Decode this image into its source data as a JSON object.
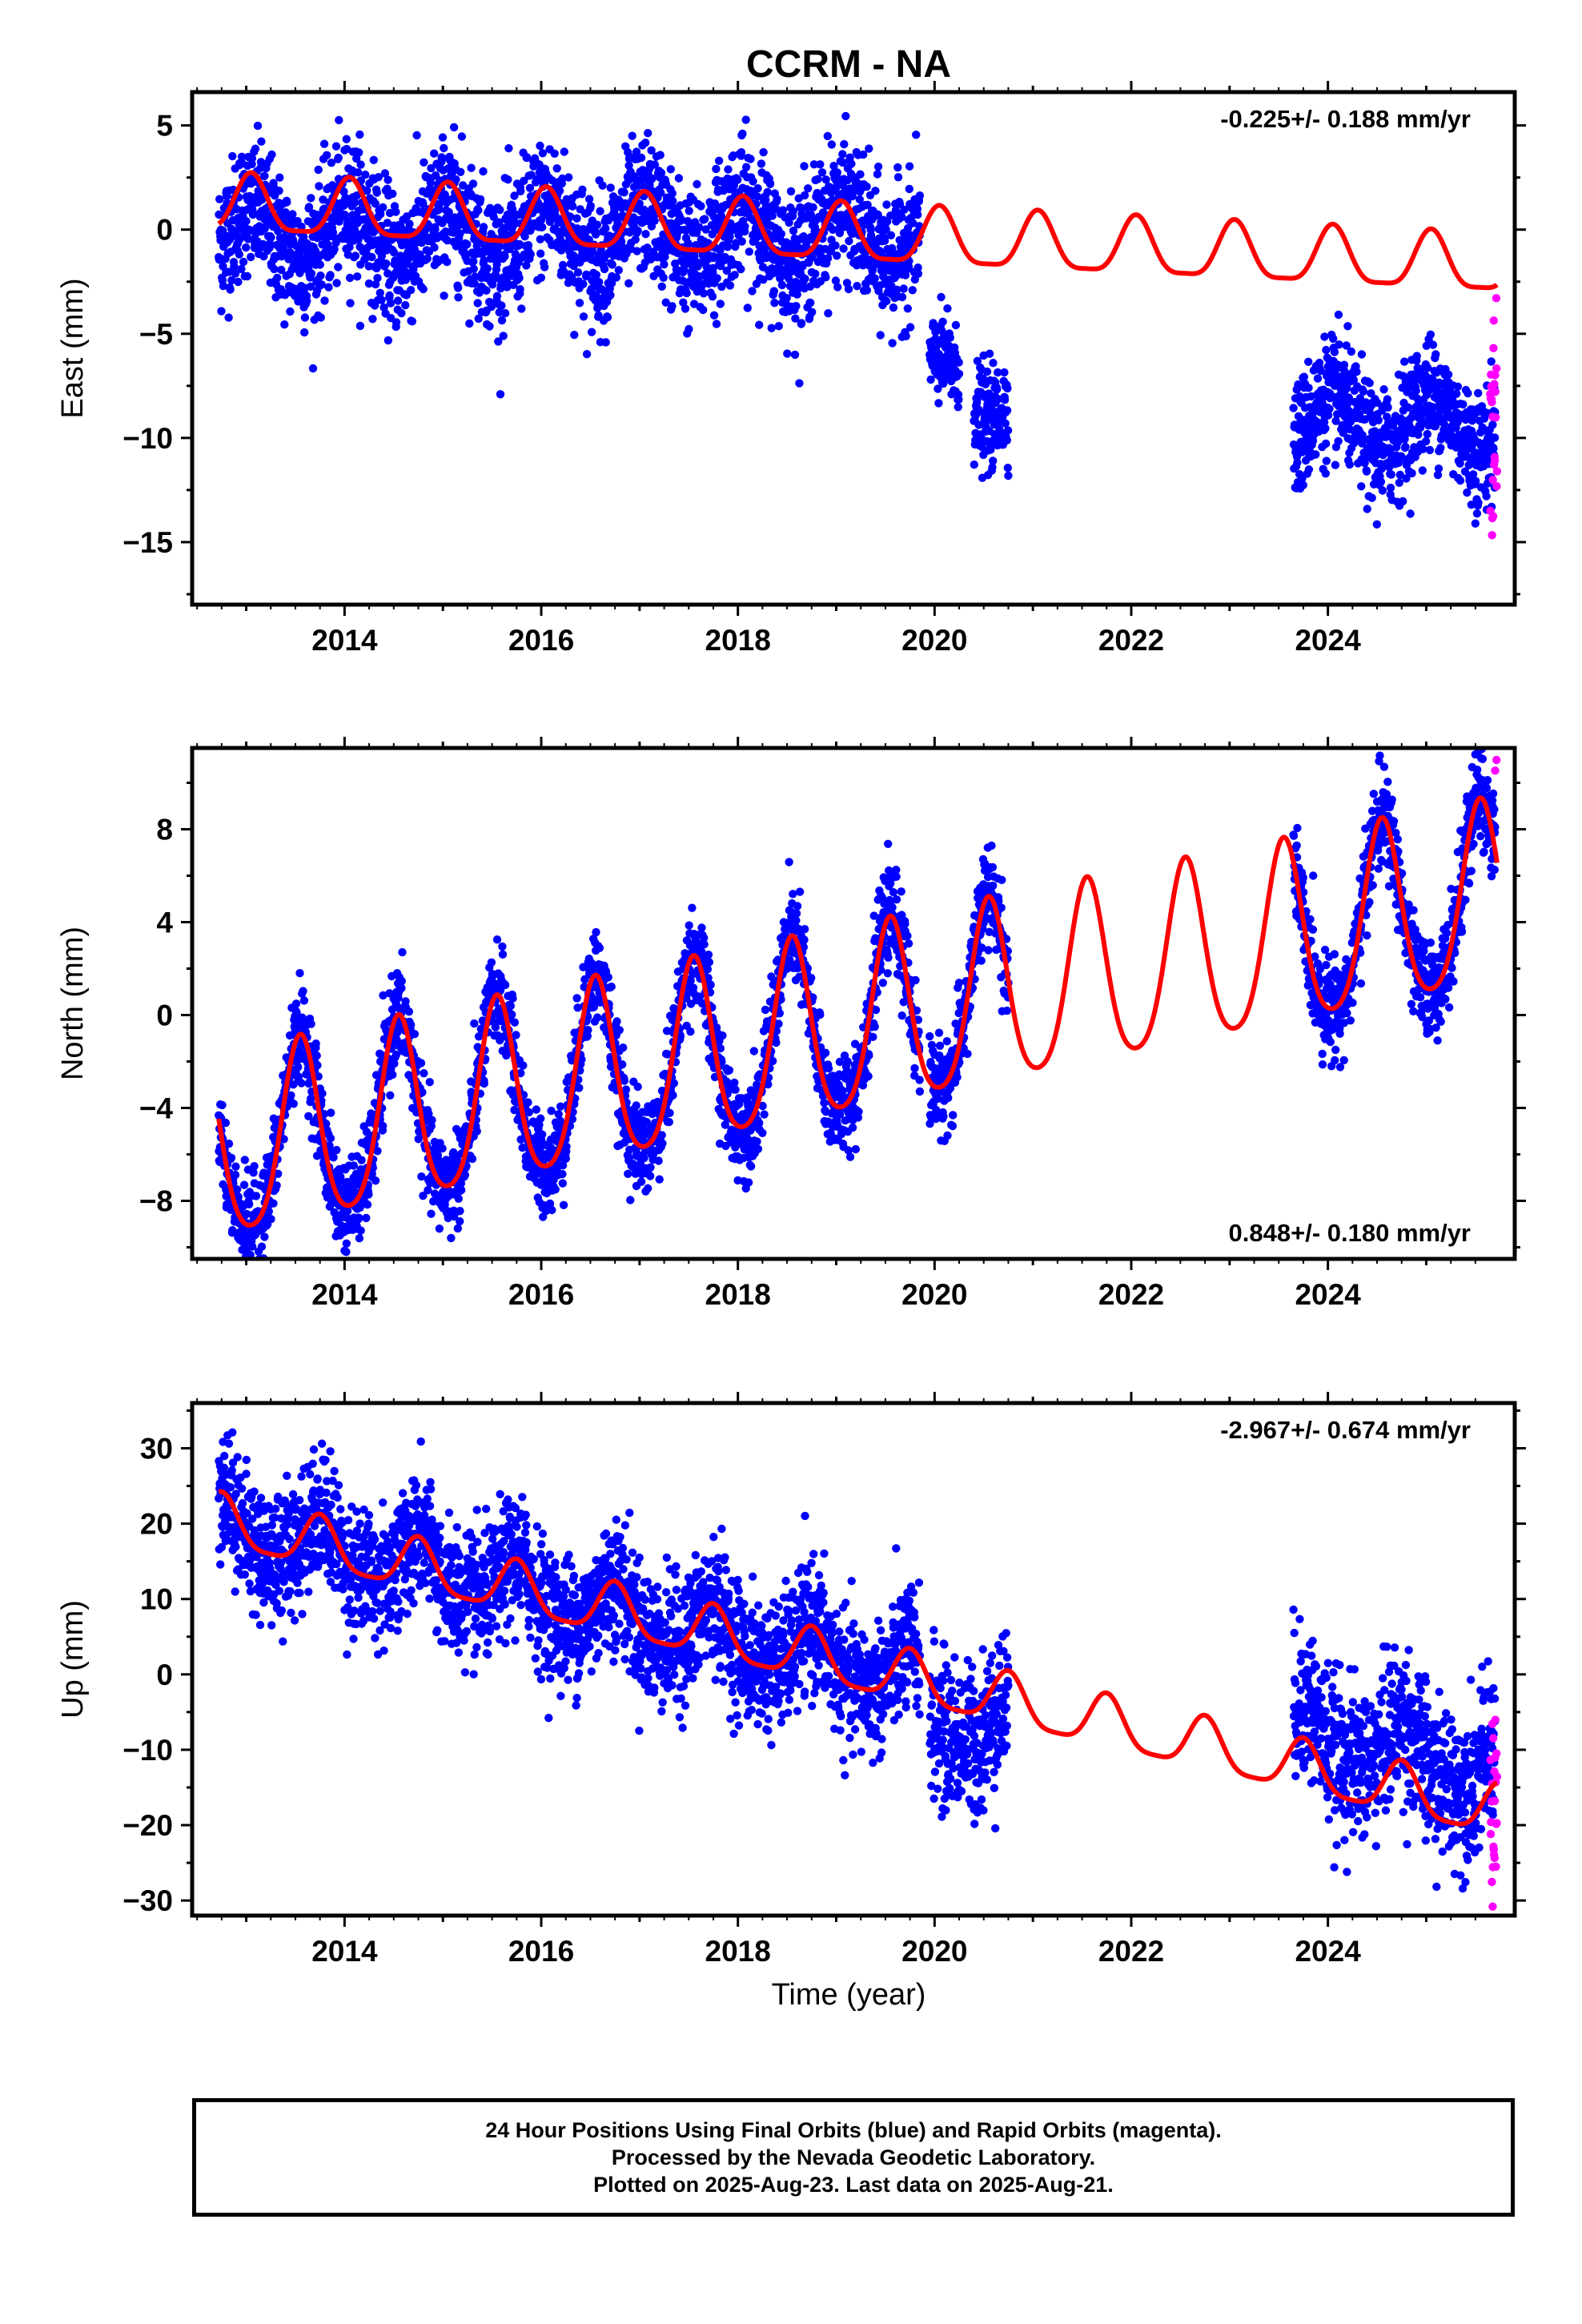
{
  "title": "CCRM - NA",
  "colors": {
    "final": "#0000ff",
    "rapid": "#ff00ff",
    "model": "#ff0000",
    "axis": "#000000"
  },
  "x_axis": {
    "label": "Time (year)",
    "range": [
      2012.45,
      2025.9
    ],
    "ticks": [
      2014,
      2016,
      2018,
      2020,
      2022,
      2024
    ]
  },
  "footer": {
    "line1": "24 Hour Positions Using Final Orbits (blue) and Rapid Orbits (magenta).",
    "line2": "Processed by the Nevada Geodetic Laboratory.",
    "line3": "Plotted on 2025-Aug-23. Last data on 2025-Aug-21."
  },
  "chart_data": [
    {
      "type": "scatter",
      "component": "east",
      "ylabel": "East (mm)",
      "ylim": [
        -18,
        6.6
      ],
      "yticks": [
        5,
        0,
        -5,
        -10,
        -15
      ],
      "velocity": "-0.225+/- 0.188 mm/yr",
      "velocity_position": "top-right",
      "model": {
        "offset": -0.3,
        "trend": -0.225,
        "seasonal_amp": 1.35,
        "phase_peak": 0.05,
        "semiannual_amp": 0.35
      },
      "series": [
        {
          "color": "final",
          "segments": [
            {
              "x": [
                2012.72,
                2019.85
              ],
              "center": -0.2,
              "spread": 1.6,
              "extra_trend": 0.0
            },
            {
              "x": [
                2019.95,
                2020.25
              ],
              "center": -7.5,
              "spread": 1.0,
              "extra_trend": 0.0
            },
            {
              "x": [
                2020.4,
                2020.75
              ],
              "center": -7.8,
              "spread": 1.2,
              "extra_trend": 0.0
            },
            {
              "x": [
                2023.65,
                2025.7
              ],
              "center": -9.3,
              "spread": 1.4,
              "extra_trend": 0.0
            }
          ]
        },
        {
          "color": "rapid",
          "segments": [
            {
              "x": [
                2025.65,
                2025.72
              ],
              "center": -8.5,
              "spread": 2.8,
              "extra_trend": 0.0
            }
          ]
        }
      ]
    },
    {
      "type": "scatter",
      "component": "north",
      "ylabel": "North (mm)",
      "ylim": [
        -10.5,
        11.5
      ],
      "yticks": [
        8,
        4,
        0,
        -4,
        -8
      ],
      "velocity": "0.848+/- 0.180 mm/yr",
      "velocity_position": "bottom-right",
      "model": {
        "offset": -0.7,
        "trend": 0.848,
        "seasonal_amp": 3.9,
        "phase_peak": 0.55,
        "semiannual_amp": 0.6
      },
      "series": [
        {
          "color": "final",
          "segments": [
            {
              "x": [
                2012.72,
                2019.85
              ],
              "center": 0.0,
              "spread": 1.0,
              "extra_trend": 0.0
            },
            {
              "x": [
                2019.95,
                2020.75
              ],
              "center": 0.0,
              "spread": 1.0,
              "extra_trend": 0.0
            },
            {
              "x": [
                2023.65,
                2025.7
              ],
              "center": 0.0,
              "spread": 1.0,
              "extra_trend": 0.0
            }
          ]
        },
        {
          "color": "rapid",
          "segments": [
            {
              "x": [
                2025.65,
                2025.72
              ],
              "center": 6.5,
              "spread": 2.2,
              "extra_trend": 0.0
            }
          ]
        }
      ]
    },
    {
      "type": "scatter",
      "component": "up",
      "ylabel": "Up (mm)",
      "ylim": [
        -32,
        36
      ],
      "yticks": [
        30,
        20,
        10,
        0,
        -10,
        -20,
        -30
      ],
      "velocity": "-2.967+/- 0.674 mm/yr",
      "velocity_position": "top-right",
      "model": {
        "offset": 1.5,
        "trend": -2.967,
        "seasonal_amp": 3.4,
        "phase_peak": 0.75,
        "semiannual_amp": 0.8
      },
      "series": [
        {
          "color": "final",
          "segments": [
            {
              "x": [
                2012.72,
                2019.85
              ],
              "center": 0.0,
              "spread": 4.2,
              "extra_trend": 0.0
            },
            {
              "x": [
                2019.95,
                2020.75
              ],
              "center": -4.0,
              "spread": 5.0,
              "extra_trend": 0.0
            },
            {
              "x": [
                2023.65,
                2025.7
              ],
              "center": 5.0,
              "spread": 5.0,
              "extra_trend": 0.0
            }
          ]
        },
        {
          "color": "rapid",
          "segments": [
            {
              "x": [
                2025.65,
                2025.72
              ],
              "center": -5.0,
              "spread": 9.0,
              "extra_trend": 0.0
            }
          ]
        }
      ]
    }
  ]
}
